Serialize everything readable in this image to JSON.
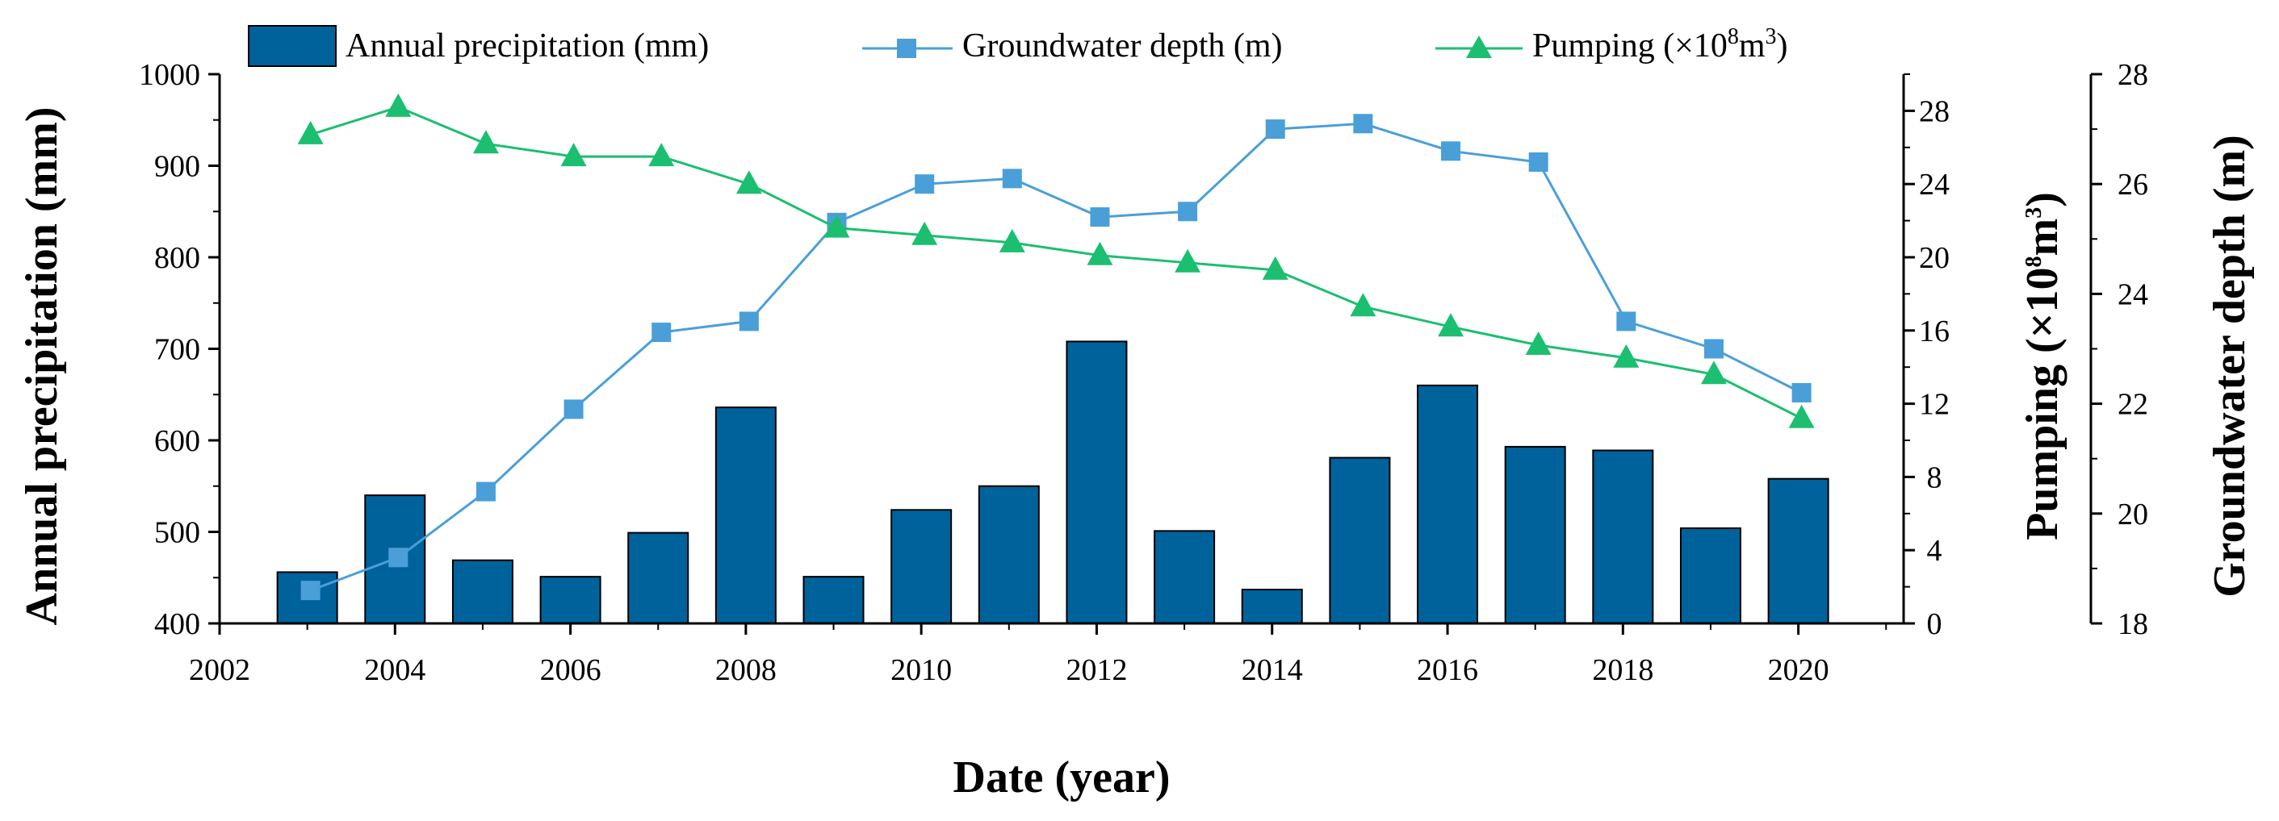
{
  "chart_data": {
    "type": "bar",
    "x": [
      2003,
      2004,
      2005,
      2006,
      2007,
      2008,
      2009,
      2010,
      2011,
      2012,
      2013,
      2014,
      2015,
      2016,
      2017,
      2018,
      2019,
      2020
    ],
    "series": [
      {
        "name": "Annual precipitation (mm)",
        "type": "bar",
        "axis": "left",
        "color": "#00629b",
        "values": [
          456,
          540,
          469,
          451,
          499,
          636,
          451,
          524,
          550,
          708,
          501,
          437,
          581,
          660,
          593,
          589,
          504,
          558
        ]
      },
      {
        "name": "Groundwater depth (m)",
        "type": "line",
        "axis": "right-outer",
        "marker": "square",
        "color": "#4a9fd8",
        "values": [
          18.6,
          19.2,
          20.4,
          21.9,
          23.3,
          23.5,
          25.3,
          26.0,
          26.1,
          25.4,
          25.5,
          27.0,
          27.1,
          26.6,
          26.4,
          23.5,
          23.0,
          22.2
        ]
      },
      {
        "name": "Pumping",
        "type": "line",
        "axis": "right-inner",
        "marker": "triangle",
        "color": "#1bbf6f",
        "values": [
          26.7,
          28.2,
          26.2,
          25.5,
          25.5,
          24.0,
          21.6,
          21.2,
          20.8,
          20.1,
          19.7,
          19.3,
          17.3,
          16.2,
          15.2,
          14.5,
          13.6,
          11.2
        ]
      }
    ],
    "title": "",
    "xlabel": "Date (year)",
    "ylabel": "Annual precipitation (mm)",
    "y2label_prefix": "Pumping (×10",
    "y2label_sup1": "8",
    "y2label_mid": "m",
    "y2label_sup2": "3",
    "y2label_suffix": ")",
    "y3label": "Groundwater depth (m)",
    "xlim": [
      2002,
      2021.2
    ],
    "ylim": [
      400,
      1000
    ],
    "y2lim": [
      0,
      30
    ],
    "y3lim": [
      18,
      28
    ],
    "xticks": [
      "2002",
      "2004",
      "2006",
      "2008",
      "2010",
      "2012",
      "2014",
      "2016",
      "2018",
      "2020"
    ],
    "yticks": [
      "400",
      "500",
      "600",
      "700",
      "800",
      "900",
      "1000"
    ],
    "y2ticks": [
      "0",
      "4",
      "8",
      "12",
      "16",
      "20",
      "24",
      "28"
    ],
    "y3ticks": [
      "18",
      "20",
      "22",
      "24",
      "26",
      "28"
    ],
    "legend": {
      "placement": "top",
      "precip_label": "Annual precipitation (mm)",
      "depth_label": "Groundwater depth (m)",
      "pumping_prefix": "Pumping (×10",
      "pumping_sup1": "8",
      "pumping_mid": "m",
      "pumping_sup2": "3"
    }
  }
}
